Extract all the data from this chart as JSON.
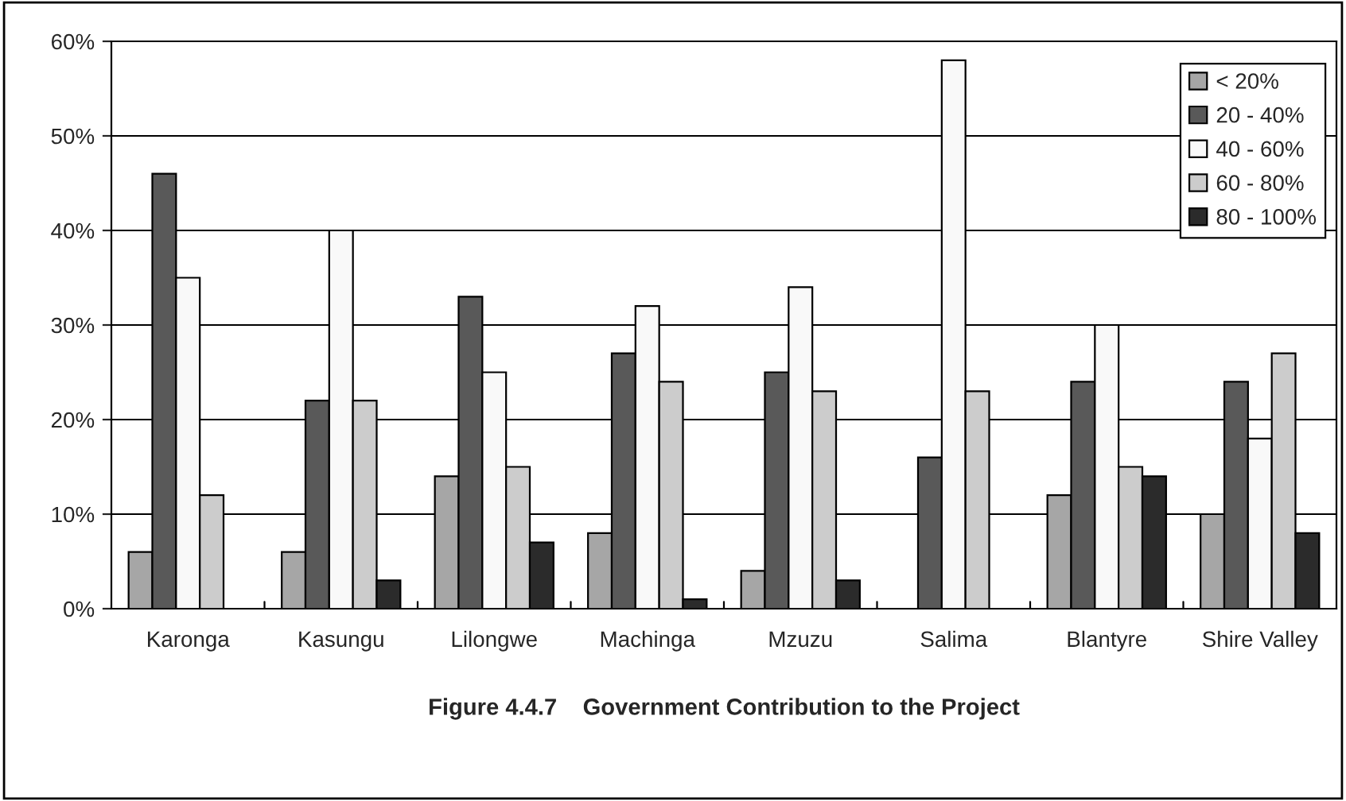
{
  "chart_data": {
    "type": "bar",
    "title": "Figure 4.4.7    Government Contribution to the Project",
    "categories": [
      "Karonga",
      "Kasungu",
      "Lilongwe",
      "Machinga",
      "Mzuzu",
      "Salima",
      "Blantyre",
      "Shire Valley"
    ],
    "series": [
      {
        "name": "< 20%",
        "color": "#a6a6a6",
        "values": [
          6,
          6,
          14,
          8,
          4,
          null,
          12,
          10
        ]
      },
      {
        "name": "20 - 40%",
        "color": "#595959",
        "values": [
          46,
          22,
          33,
          27,
          25,
          16,
          24,
          24
        ]
      },
      {
        "name": "40 - 60%",
        "color": "#f9f9f9",
        "values": [
          35,
          40,
          25,
          32,
          34,
          58,
          30,
          18
        ]
      },
      {
        "name": "60 - 80%",
        "color": "#cccccc",
        "values": [
          12,
          22,
          15,
          24,
          23,
          23,
          15,
          27
        ]
      },
      {
        "name": "80 - 100%",
        "color": "#2b2b2b",
        "values": [
          null,
          3,
          7,
          1,
          3,
          null,
          14,
          8
        ]
      }
    ],
    "ylim": [
      0,
      60
    ],
    "yticks": [
      {
        "value": 0,
        "label": "0%"
      },
      {
        "value": 10,
        "label": "10%"
      },
      {
        "value": 20,
        "label": "20%"
      },
      {
        "value": 30,
        "label": "30%"
      },
      {
        "value": 40,
        "label": "40%"
      },
      {
        "value": 50,
        "label": "50%"
      },
      {
        "value": 60,
        "label": "60%"
      }
    ],
    "grid": "y",
    "legend": "top right"
  }
}
